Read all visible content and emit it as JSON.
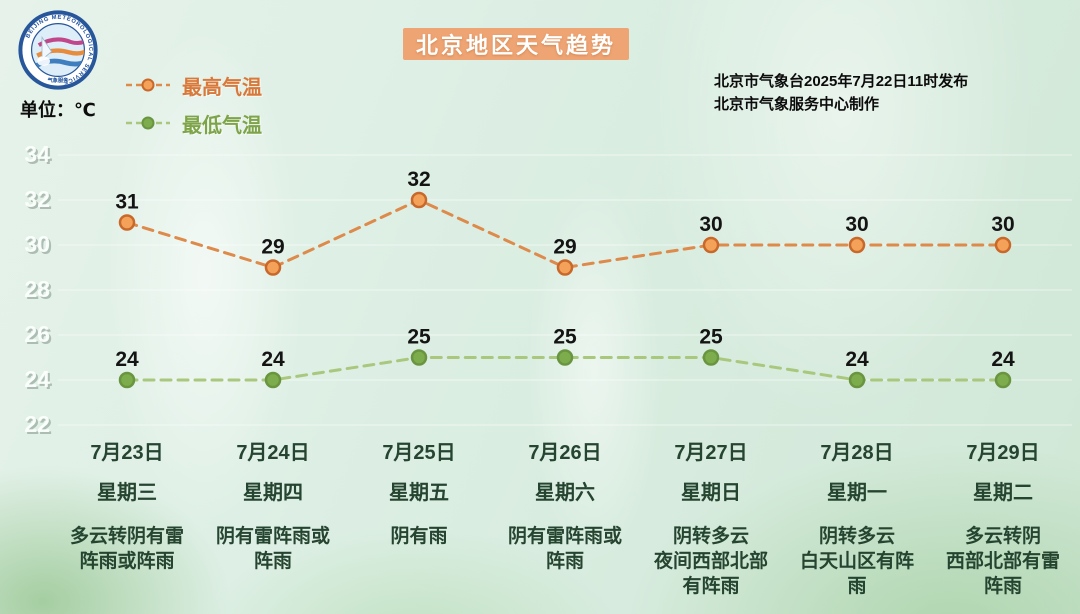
{
  "page": {
    "title": "北京地区天气趋势"
  },
  "unit_label": "单位：℃",
  "source": {
    "line1": "北京市气象台2025年7月22日11时发布",
    "line2": "北京市气象服务中心制作"
  },
  "logo": {
    "icon": "beijing-meteorological-service-badge",
    "ring_text": "BEIJING METEOROLOGICAL SERVICE",
    "bottom_text": "气象服务"
  },
  "colors": {
    "title_bg": "#efa474",
    "title_text": "#ffffff",
    "high_line": "#dd8a4a",
    "high_marker_fill": "#f4a259",
    "high_marker_stroke": "#c8682a",
    "high_label": "#d8793a",
    "low_line": "#a9c87e",
    "low_marker_fill": "#7cac4b",
    "low_marker_stroke": "#699540",
    "low_label": "#7da448",
    "axis_text": "#fbfffc",
    "day_text": "#264531",
    "value_text": "#141414"
  },
  "chart_data": {
    "type": "line",
    "title": "北京地区天气趋势",
    "unit": "℃",
    "categories": [
      "7月23日",
      "7月24日",
      "7月25日",
      "7月26日",
      "7月27日",
      "7月28日",
      "7月29日"
    ],
    "weekdays": [
      "星期三",
      "星期四",
      "星期五",
      "星期六",
      "星期日",
      "星期一",
      "星期二"
    ],
    "weather": [
      "多云转阴有雷\n阵雨或阵雨",
      "阴有雷阵雨或\n阵雨",
      "阴有雨",
      "阴有雷阵雨或\n阵雨",
      "阴转多云\n夜间西部北部\n有阵雨",
      "阴转多云\n白天山区有阵\n雨",
      "多云转阴\n西部北部有雷\n阵雨"
    ],
    "series": [
      {
        "name": "最高气温",
        "values": [
          31,
          29,
          32,
          29,
          30,
          30,
          30
        ]
      },
      {
        "name": "最低气温",
        "values": [
          24,
          24,
          25,
          25,
          25,
          24,
          24
        ]
      }
    ],
    "y_ticks": [
      34,
      32,
      30,
      28,
      26,
      24,
      22
    ],
    "ylim": [
      21,
      35
    ],
    "grid": true,
    "line_style": "dashed",
    "legend_position": "top-left"
  }
}
